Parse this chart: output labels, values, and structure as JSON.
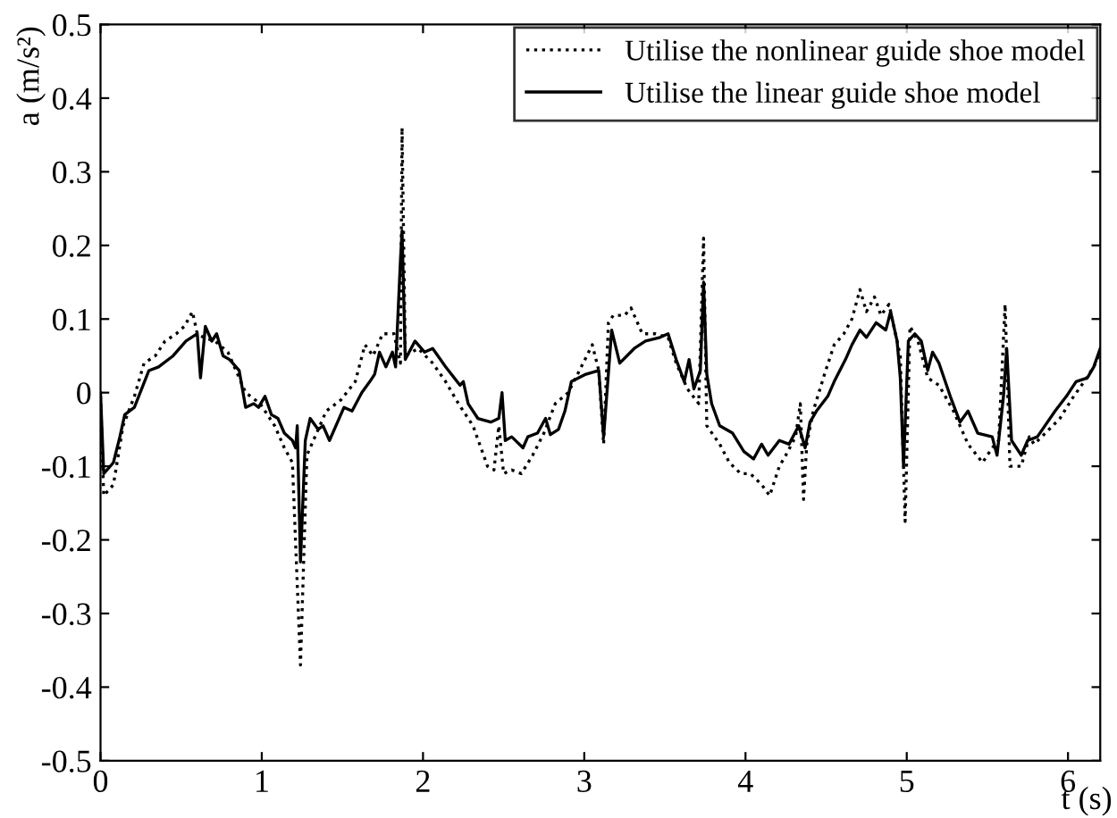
{
  "chart_data": {
    "type": "line",
    "xlabel": "t (s)",
    "ylabel": "a (m/s²)",
    "xlim": [
      0,
      6.2
    ],
    "ylim": [
      -0.5,
      0.5
    ],
    "xticks": [
      0,
      1,
      2,
      3,
      4,
      5,
      6
    ],
    "yticks": [
      -0.5,
      -0.4,
      -0.3,
      -0.2,
      -0.1,
      0,
      0.1,
      0.2,
      0.3,
      0.4,
      0.5
    ],
    "grid": false,
    "legend": "top right",
    "series": [
      {
        "name": "Utilise the nonlinear guide shoe model",
        "color": "#000000",
        "line_style": "dotted",
        "x": [
          0,
          0.02,
          0.08,
          0.14,
          0.21,
          0.27,
          0.34,
          0.4,
          0.47,
          0.52,
          0.57,
          0.6,
          0.64,
          0.71,
          0.79,
          0.86,
          0.9,
          0.99,
          1.08,
          1.14,
          1.19,
          1.24,
          1.28,
          1.34,
          1.4,
          1.49,
          1.58,
          1.64,
          1.69,
          1.75,
          1.82,
          1.86,
          1.87,
          1.89,
          1.97,
          2.06,
          2.14,
          2.22,
          2.31,
          2.4,
          2.44,
          2.47,
          2.5,
          2.55,
          2.61,
          2.68,
          2.75,
          2.82,
          2.9,
          2.97,
          3.05,
          3.09,
          3.12,
          3.15,
          3.18,
          3.25,
          3.29,
          3.36,
          3.44,
          3.52,
          3.57,
          3.64,
          3.71,
          3.74,
          3.76,
          3.84,
          3.9,
          3.97,
          4.03,
          4.1,
          4.15,
          4.21,
          4.25,
          4.31,
          4.34,
          4.36,
          4.38,
          4.42,
          4.49,
          4.55,
          4.61,
          4.66,
          4.71,
          4.75,
          4.8,
          4.84,
          4.89,
          4.93,
          4.96,
          4.99,
          5.02,
          5.07,
          5.13,
          5.2,
          5.29,
          5.38,
          5.47,
          5.53,
          5.57,
          5.61,
          5.64,
          5.71,
          5.76,
          5.79,
          5.86,
          5.95,
          6.02,
          6.1,
          6.16,
          6.2
        ],
        "values": [
          -0.005,
          -0.14,
          -0.125,
          -0.045,
          -0.005,
          0.04,
          0.05,
          0.07,
          0.08,
          0.09,
          0.11,
          0.08,
          0.075,
          0.07,
          0.055,
          0.02,
          0.0,
          -0.015,
          -0.045,
          -0.075,
          -0.095,
          -0.37,
          -0.085,
          -0.055,
          -0.025,
          -0.01,
          0.015,
          0.065,
          0.05,
          0.08,
          0.08,
          0.04,
          0.36,
          0.05,
          0.06,
          0.04,
          0.015,
          -0.015,
          -0.045,
          -0.1,
          -0.105,
          -0.045,
          -0.11,
          -0.105,
          -0.11,
          -0.085,
          -0.055,
          -0.015,
          0.0,
          0.03,
          0.065,
          0.03,
          -0.07,
          0.095,
          0.105,
          0.105,
          0.115,
          0.08,
          0.08,
          0.075,
          0.04,
          0.005,
          -0.015,
          0.21,
          -0.045,
          -0.07,
          -0.095,
          -0.11,
          -0.11,
          -0.125,
          -0.14,
          -0.1,
          -0.085,
          -0.06,
          -0.015,
          -0.145,
          -0.07,
          -0.025,
          0.025,
          0.065,
          0.08,
          0.1,
          0.14,
          0.11,
          0.13,
          0.105,
          0.12,
          0.08,
          0.05,
          -0.175,
          0.09,
          0.07,
          0.02,
          0.01,
          -0.025,
          -0.07,
          -0.095,
          -0.075,
          -0.065,
          0.12,
          -0.1,
          -0.1,
          -0.06,
          -0.07,
          -0.055,
          -0.035,
          -0.01,
          0.015,
          0.035,
          0.055
        ]
      },
      {
        "name": "Utilise the linear guide shoe model",
        "color": "#000000",
        "line_style": "solid",
        "x": [
          0,
          0.02,
          0.08,
          0.12,
          0.15,
          0.21,
          0.3,
          0.36,
          0.45,
          0.53,
          0.6,
          0.62,
          0.65,
          0.69,
          0.72,
          0.76,
          0.8,
          0.86,
          0.9,
          0.95,
          0.98,
          1.02,
          1.06,
          1.1,
          1.14,
          1.19,
          1.21,
          1.22,
          1.24,
          1.27,
          1.3,
          1.35,
          1.38,
          1.42,
          1.51,
          1.56,
          1.62,
          1.67,
          1.7,
          1.73,
          1.77,
          1.81,
          1.83,
          1.86,
          1.87,
          1.89,
          1.95,
          2.01,
          2.06,
          2.14,
          2.23,
          2.25,
          2.28,
          2.34,
          2.42,
          2.47,
          2.49,
          2.51,
          2.55,
          2.62,
          2.65,
          2.71,
          2.76,
          2.79,
          2.84,
          2.88,
          2.92,
          3.01,
          3.09,
          3.12,
          3.17,
          3.22,
          3.31,
          3.38,
          3.47,
          3.52,
          3.57,
          3.62,
          3.65,
          3.68,
          3.72,
          3.74,
          3.76,
          3.79,
          3.84,
          3.92,
          3.99,
          4.05,
          4.1,
          4.14,
          4.21,
          4.27,
          4.33,
          4.37,
          4.4,
          4.44,
          4.51,
          4.55,
          4.62,
          4.66,
          4.71,
          4.75,
          4.81,
          4.87,
          4.9,
          4.94,
          4.96,
          4.98,
          5.01,
          5.05,
          5.09,
          5.13,
          5.16,
          5.2,
          5.27,
          5.33,
          5.38,
          5.44,
          5.53,
          5.56,
          5.6,
          5.62,
          5.65,
          5.71,
          5.75,
          5.81,
          5.92,
          5.99,
          6.05,
          6.12,
          6.16,
          6.2
        ],
        "values": [
          0.0,
          -0.11,
          -0.095,
          -0.06,
          -0.03,
          -0.02,
          0.03,
          0.035,
          0.05,
          0.07,
          0.08,
          0.02,
          0.09,
          0.07,
          0.08,
          0.05,
          0.045,
          0.03,
          -0.02,
          -0.015,
          -0.02,
          -0.005,
          -0.03,
          -0.035,
          -0.055,
          -0.065,
          -0.075,
          -0.045,
          -0.23,
          -0.065,
          -0.035,
          -0.05,
          -0.045,
          -0.065,
          -0.02,
          -0.025,
          0.0,
          0.015,
          0.025,
          0.055,
          0.035,
          0.055,
          0.035,
          0.18,
          0.22,
          0.045,
          0.07,
          0.055,
          0.06,
          0.035,
          0.01,
          0.015,
          -0.015,
          -0.035,
          -0.04,
          -0.035,
          0.0,
          -0.065,
          -0.06,
          -0.075,
          -0.06,
          -0.055,
          -0.035,
          -0.057,
          -0.05,
          -0.025,
          0.015,
          0.025,
          0.03,
          -0.06,
          0.085,
          0.04,
          0.06,
          0.07,
          0.075,
          0.08,
          0.045,
          0.015,
          0.045,
          0.005,
          0.03,
          0.15,
          0.025,
          -0.015,
          -0.045,
          -0.055,
          -0.08,
          -0.09,
          -0.07,
          -0.085,
          -0.065,
          -0.07,
          -0.045,
          -0.075,
          -0.04,
          -0.025,
          -0.005,
          0.015,
          0.045,
          0.065,
          0.085,
          0.075,
          0.095,
          0.085,
          0.11,
          0.07,
          0.02,
          -0.1,
          0.07,
          0.08,
          0.07,
          0.03,
          0.055,
          0.04,
          -0.005,
          -0.04,
          -0.025,
          -0.055,
          -0.06,
          -0.085,
          -0.005,
          0.06,
          -0.065,
          -0.085,
          -0.065,
          -0.06,
          -0.025,
          -0.005,
          0.015,
          0.02,
          0.035,
          0.06
        ]
      }
    ]
  }
}
